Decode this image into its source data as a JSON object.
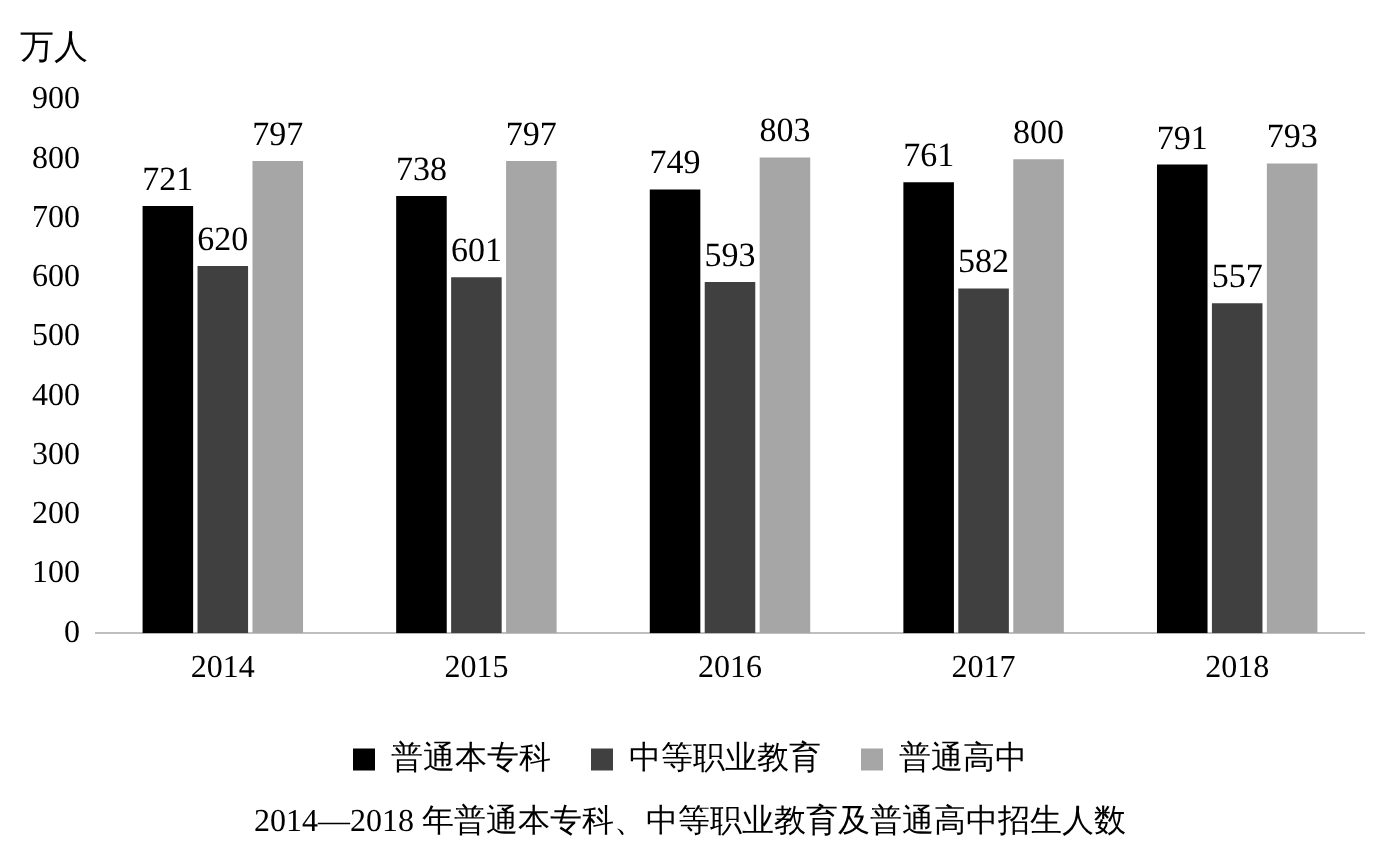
{
  "chart_data": {
    "type": "bar",
    "title": "2014—2018 年普通本专科、中等职业教育及普通高中招生人数",
    "ylabel": "万人",
    "categories": [
      "2014",
      "2015",
      "2016",
      "2017",
      "2018"
    ],
    "series": [
      {
        "name": "普通本专科",
        "color": "#000000",
        "values": [
          721,
          738,
          749,
          761,
          791
        ]
      },
      {
        "name": "中等职业教育",
        "color": "#404040",
        "values": [
          620,
          601,
          593,
          582,
          557
        ]
      },
      {
        "name": "普通高中",
        "color": "#a6a6a6",
        "values": [
          797,
          797,
          803,
          800,
          793
        ]
      }
    ],
    "ylim": [
      0,
      900
    ],
    "yticks": [
      0,
      100,
      200,
      300,
      400,
      500,
      600,
      700,
      800,
      900
    ],
    "grid": false,
    "legend": "bottom",
    "data_labels": true
  }
}
